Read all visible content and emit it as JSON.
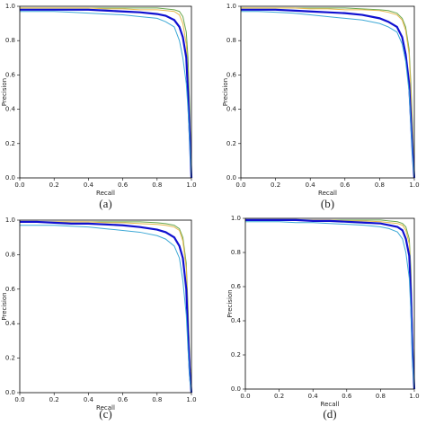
{
  "chart_data": [
    {
      "type": "line",
      "title": "(a)",
      "xlabel": "Recall",
      "ylabel": "Precision",
      "x": [
        0,
        0.1,
        0.2,
        0.3,
        0.4,
        0.5,
        0.6,
        0.7,
        0.8,
        0.85,
        0.9,
        0.93,
        0.95,
        0.97,
        0.98,
        0.99,
        1.0
      ],
      "xlim": [
        0,
        1
      ],
      "ylim": [
        0,
        1
      ],
      "xticks": [
        {
          "value": 0,
          "label": "0.0"
        },
        0.2,
        0.4,
        0.6,
        0.8,
        {
          "value": 1,
          "label": "1.0"
        }
      ],
      "yticks": [
        {
          "value": 0,
          "label": "0.0"
        },
        0.2,
        0.4,
        0.6,
        0.8,
        {
          "value": 1,
          "label": "1.0"
        }
      ],
      "series": [
        {
          "color": "#6aa84f",
          "width": 1,
          "values": [
            0.99,
            0.99,
            0.99,
            0.99,
            0.99,
            0.99,
            0.99,
            0.99,
            0.99,
            0.985,
            0.98,
            0.97,
            0.94,
            0.85,
            0.7,
            0.4,
            0.0
          ]
        },
        {
          "color": "#e6b84c",
          "width": 1,
          "values": [
            0.99,
            0.99,
            0.99,
            0.99,
            0.99,
            0.985,
            0.985,
            0.98,
            0.98,
            0.975,
            0.97,
            0.95,
            0.9,
            0.78,
            0.6,
            0.3,
            0.0
          ]
        },
        {
          "color": "#1010d0",
          "width": 2.2,
          "values": [
            0.98,
            0.98,
            0.98,
            0.98,
            0.98,
            0.975,
            0.97,
            0.965,
            0.955,
            0.945,
            0.92,
            0.88,
            0.82,
            0.7,
            0.5,
            0.25,
            0.0
          ]
        },
        {
          "color": "#3fa9d6",
          "width": 1,
          "values": [
            0.97,
            0.97,
            0.97,
            0.965,
            0.96,
            0.955,
            0.95,
            0.94,
            0.93,
            0.91,
            0.88,
            0.8,
            0.7,
            0.55,
            0.4,
            0.2,
            0.0
          ]
        }
      ]
    },
    {
      "type": "line",
      "title": "(b)",
      "xlabel": "Recall",
      "ylabel": "Precision",
      "x": [
        0,
        0.1,
        0.2,
        0.3,
        0.4,
        0.5,
        0.6,
        0.7,
        0.8,
        0.85,
        0.9,
        0.93,
        0.95,
        0.97,
        0.98,
        0.99,
        1.0
      ],
      "xlim": [
        0,
        1
      ],
      "ylim": [
        0,
        1
      ],
      "xticks": [
        {
          "value": 0,
          "label": "0.0"
        },
        0.2,
        0.4,
        0.6,
        0.8,
        {
          "value": 1,
          "label": "1.0"
        }
      ],
      "yticks": [
        {
          "value": 0,
          "label": "0.0"
        },
        0.2,
        0.4,
        0.6,
        0.8,
        {
          "value": 1,
          "label": "1.0"
        }
      ],
      "series": [
        {
          "color": "#6aa84f",
          "width": 1,
          "values": [
            0.99,
            0.99,
            0.99,
            0.99,
            0.99,
            0.99,
            0.99,
            0.985,
            0.98,
            0.975,
            0.96,
            0.93,
            0.88,
            0.75,
            0.55,
            0.3,
            0.0
          ]
        },
        {
          "color": "#e6b84c",
          "width": 1,
          "values": [
            0.99,
            0.99,
            0.99,
            0.99,
            0.985,
            0.985,
            0.98,
            0.98,
            0.975,
            0.965,
            0.95,
            0.92,
            0.86,
            0.72,
            0.5,
            0.25,
            0.0
          ]
        },
        {
          "color": "#1010d0",
          "width": 2.2,
          "values": [
            0.98,
            0.98,
            0.98,
            0.975,
            0.97,
            0.965,
            0.96,
            0.95,
            0.93,
            0.91,
            0.88,
            0.82,
            0.72,
            0.55,
            0.35,
            0.15,
            0.0
          ]
        },
        {
          "color": "#3fa9d6",
          "width": 1,
          "values": [
            0.97,
            0.97,
            0.965,
            0.96,
            0.95,
            0.94,
            0.93,
            0.92,
            0.9,
            0.88,
            0.85,
            0.78,
            0.68,
            0.5,
            0.3,
            0.12,
            0.0
          ]
        }
      ]
    },
    {
      "type": "line",
      "title": "(c)",
      "xlabel": "Recall",
      "ylabel": "Precision",
      "x": [
        0,
        0.1,
        0.2,
        0.3,
        0.4,
        0.5,
        0.6,
        0.7,
        0.8,
        0.85,
        0.9,
        0.93,
        0.95,
        0.97,
        0.98,
        0.99,
        1.0
      ],
      "xlim": [
        0,
        1
      ],
      "ylim": [
        0,
        1
      ],
      "xticks": [
        {
          "value": 0,
          "label": "0.0"
        },
        0.2,
        0.4,
        0.6,
        0.8,
        {
          "value": 1,
          "label": "1.0"
        }
      ],
      "yticks": [
        {
          "value": 0,
          "label": "0.0"
        },
        0.2,
        0.4,
        0.6,
        0.8,
        {
          "value": 1,
          "label": "1.0"
        }
      ],
      "series": [
        {
          "color": "#6aa84f",
          "width": 1,
          "values": [
            0.99,
            0.99,
            0.99,
            0.99,
            0.99,
            0.99,
            0.99,
            0.99,
            0.985,
            0.98,
            0.97,
            0.95,
            0.9,
            0.75,
            0.5,
            0.2,
            0.0
          ]
        },
        {
          "color": "#e6b84c",
          "width": 1,
          "values": [
            0.99,
            0.99,
            0.99,
            0.99,
            0.99,
            0.985,
            0.985,
            0.98,
            0.975,
            0.97,
            0.96,
            0.94,
            0.88,
            0.72,
            0.45,
            0.18,
            0.0
          ]
        },
        {
          "color": "#1010d0",
          "width": 2.2,
          "values": [
            0.99,
            0.99,
            0.985,
            0.98,
            0.98,
            0.975,
            0.97,
            0.96,
            0.945,
            0.93,
            0.9,
            0.85,
            0.78,
            0.6,
            0.35,
            0.12,
            0.0
          ]
        },
        {
          "color": "#3fa9d6",
          "width": 1,
          "values": [
            0.97,
            0.97,
            0.97,
            0.965,
            0.96,
            0.95,
            0.94,
            0.93,
            0.91,
            0.89,
            0.85,
            0.78,
            0.65,
            0.45,
            0.25,
            0.08,
            0.0
          ]
        }
      ]
    },
    {
      "type": "line",
      "title": "(d)",
      "xlabel": "Recall",
      "ylabel": "Precision",
      "x": [
        0,
        0.1,
        0.2,
        0.3,
        0.4,
        0.5,
        0.6,
        0.7,
        0.8,
        0.85,
        0.9,
        0.93,
        0.95,
        0.97,
        0.98,
        0.99,
        1.0
      ],
      "xlim": [
        0,
        1
      ],
      "ylim": [
        0,
        1
      ],
      "xticks": [
        {
          "value": 0,
          "label": "0.0"
        },
        0.2,
        0.4,
        0.6,
        0.8,
        {
          "value": 1,
          "label": "1.0"
        }
      ],
      "yticks": [
        {
          "value": 0,
          "label": "0.0"
        },
        0.2,
        0.4,
        0.6,
        0.8,
        {
          "value": 1,
          "label": "1.0"
        }
      ],
      "series": [
        {
          "color": "#6aa84f",
          "width": 1,
          "values": [
            0.99,
            0.99,
            0.99,
            0.99,
            0.99,
            0.99,
            0.99,
            0.99,
            0.99,
            0.985,
            0.98,
            0.97,
            0.95,
            0.88,
            0.7,
            0.3,
            0.0
          ]
        },
        {
          "color": "#e6b84c",
          "width": 1,
          "values": [
            0.99,
            0.99,
            0.99,
            0.99,
            0.99,
            0.99,
            0.985,
            0.985,
            0.98,
            0.975,
            0.97,
            0.96,
            0.93,
            0.85,
            0.65,
            0.25,
            0.0
          ]
        },
        {
          "color": "#1010d0",
          "width": 2.2,
          "values": [
            0.99,
            0.99,
            0.99,
            0.99,
            0.985,
            0.985,
            0.98,
            0.975,
            0.97,
            0.96,
            0.95,
            0.93,
            0.88,
            0.78,
            0.55,
            0.2,
            0.0
          ]
        },
        {
          "color": "#3fa9d6",
          "width": 1,
          "values": [
            0.98,
            0.98,
            0.98,
            0.975,
            0.975,
            0.97,
            0.965,
            0.96,
            0.95,
            0.94,
            0.92,
            0.88,
            0.8,
            0.65,
            0.45,
            0.15,
            0.0
          ]
        }
      ]
    }
  ]
}
